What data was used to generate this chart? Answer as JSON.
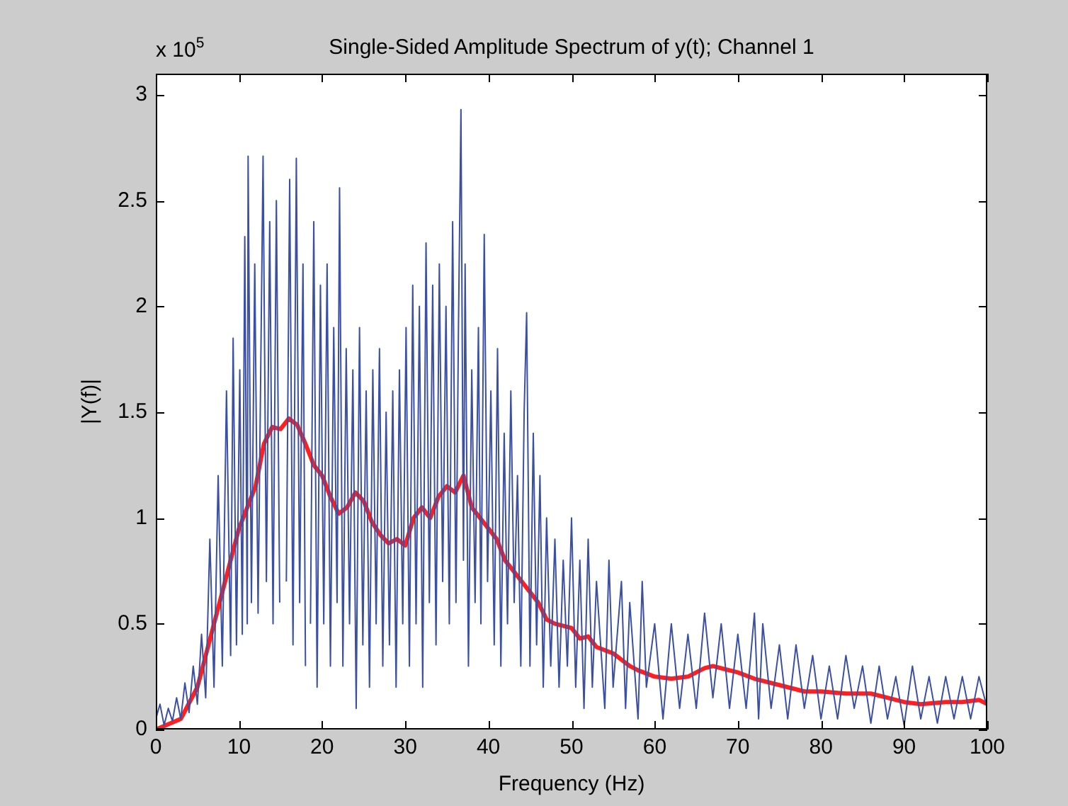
{
  "chart_data": {
    "type": "line",
    "title": "Single-Sided Amplitude Spectrum of y(t); Channel 1",
    "xlabel": "Frequency (Hz)",
    "ylabel": "|Y(f)|",
    "annotations": [
      "x 10$^{5}$"
    ],
    "xlim": [
      0,
      100
    ],
    "ylim": [
      0,
      3.1
    ],
    "xticks": [
      0,
      10,
      20,
      30,
      40,
      50,
      60,
      70,
      80,
      90,
      100
    ],
    "yticks": [
      0,
      0.5,
      1,
      1.5,
      2,
      2.5,
      3
    ],
    "series": [
      {
        "color": "#3b4fa3",
        "x": [
          0,
          0.5,
          1,
          1.5,
          2,
          2.5,
          3,
          3.5,
          4,
          4.5,
          5,
          5.5,
          6,
          6.5,
          7,
          7.5,
          8,
          8.5,
          9,
          9.3,
          9.7,
          10.1,
          10.4,
          10.7,
          11.0,
          11.1,
          11.5,
          11.9,
          12.3,
          12.9,
          13.3,
          13.7,
          14.1,
          14.5,
          14.9,
          15.3,
          15.7,
          16.1,
          16.5,
          16.9,
          17.3,
          17.7,
          18.0,
          18.2,
          18.6,
          19.0,
          19.4,
          19.8,
          20.2,
          20.6,
          21.0,
          21.4,
          21.8,
          22.1,
          22.5,
          22.9,
          23.3,
          23.7,
          24.1,
          24.5,
          24.9,
          25.3,
          25.7,
          26.1,
          26.5,
          26.9,
          27.3,
          27.7,
          28.1,
          28.5,
          28.9,
          29.3,
          29.7,
          30.1,
          30.5,
          30.9,
          31.3,
          31.7,
          32.1,
          32.5,
          32.9,
          33.3,
          33.7,
          34.1,
          34.5,
          34.9,
          35.3,
          35.7,
          36.1,
          36.4,
          36.7,
          37.0,
          37.2,
          37.6,
          38.0,
          38.4,
          38.8,
          39.1,
          39.5,
          39.9,
          40.3,
          40.7,
          41.1,
          41.5,
          41.9,
          42.3,
          42.7,
          43.1,
          43.5,
          43.9,
          44.3,
          44.6,
          45.0,
          45.4,
          45.8,
          46.2,
          46.6,
          47,
          47.5,
          48,
          48.5,
          49,
          49.5,
          50,
          50.5,
          51,
          51.5,
          52,
          52.5,
          53,
          54,
          54.5,
          55,
          56,
          56.5,
          57,
          58,
          58.5,
          59,
          60,
          61,
          62,
          63,
          64,
          65,
          66,
          67,
          68,
          69,
          70,
          71,
          72,
          72.5,
          73,
          74,
          75,
          76,
          77,
          78,
          79,
          80,
          81,
          82,
          83,
          84,
          85,
          86,
          87,
          88,
          89,
          90,
          91,
          92,
          93,
          94,
          95,
          96,
          97,
          98,
          99,
          100
        ],
        "values": [
          0.05,
          0.12,
          0.02,
          0.1,
          0.04,
          0.15,
          0.05,
          0.22,
          0.08,
          0.3,
          0.12,
          0.45,
          0.15,
          0.9,
          0.2,
          1.2,
          0.3,
          1.6,
          0.35,
          1.85,
          0.4,
          1.7,
          0.45,
          2.33,
          0.5,
          2.71,
          0.6,
          2.2,
          0.55,
          2.71,
          0.7,
          2.4,
          0.5,
          2.5,
          0.6,
          null,
          0.7,
          2.6,
          0.4,
          2.7,
          0.6,
          2.2,
          0.3,
          null,
          0.5,
          2.4,
          0.2,
          2.1,
          0.5,
          2.2,
          0.3,
          1.9,
          0.6,
          2.56,
          0.3,
          1.8,
          0.5,
          1.7,
          0.1,
          1.9,
          0.4,
          1.6,
          0.2,
          1.7,
          0.5,
          1.8,
          0.3,
          1.5,
          0.4,
          1.6,
          0.2,
          1.7,
          0.5,
          1.9,
          0.3,
          2.1,
          0.5,
          2.0,
          0.2,
          2.3,
          0.6,
          2.1,
          0.4,
          2.2,
          0.7,
          2.0,
          0.5,
          2.4,
          0.6,
          1.9,
          2.93,
          0.8,
          2.2,
          0.3,
          1.7,
          0.6,
          1.9,
          0.5,
          2.34,
          0.7,
          1.6,
          0.4,
          1.8,
          0.3,
          1.4,
          0.5,
          1.6,
          0.6,
          1.2,
          0.3,
          1.5,
          1.97,
          0.3,
          1.4,
          0.4,
          1.2,
          0.2,
          1.0,
          0.3,
          0.9,
          0.2,
          0.8,
          0.3,
          1.0,
          0.2,
          0.8,
          0.1,
          0.9,
          0.2,
          0.7,
          0.1,
          0.8,
          0.2,
          0.7,
          0.1,
          0.6,
          0.05,
          0.7,
          0.2,
          0.5,
          0.05,
          0.5,
          0.1,
          0.45,
          0.1,
          0.55,
          0.15,
          0.5,
          0.1,
          0.45,
          0.1,
          0.55,
          0.05,
          0.5,
          0.1,
          0.4,
          0.05,
          0.4,
          0.1,
          0.35,
          0.05,
          0.3,
          0.05,
          0.35,
          0.1,
          0.3,
          0.03,
          0.3,
          0.05,
          0.25,
          0.02,
          0.3,
          0.05,
          0.25,
          0.03,
          0.25,
          0.05,
          0.25,
          0.05,
          0.25,
          0.1
        ]
      },
      {
        "color": "#ff1f1f",
        "x": [
          0,
          3,
          5,
          7,
          9,
          10,
          11,
          12,
          13,
          14,
          15,
          16,
          17,
          18,
          19,
          20,
          21,
          22,
          23,
          24,
          25,
          26,
          27,
          28,
          29,
          30,
          31,
          32,
          33,
          34,
          35,
          36,
          37,
          38,
          39,
          40,
          41,
          42,
          43,
          44,
          45,
          46,
          47,
          48,
          50,
          51,
          52,
          53,
          55,
          57,
          58,
          60,
          62,
          64,
          66,
          67,
          70,
          72,
          75,
          78,
          80,
          83,
          86,
          88,
          90,
          92,
          95,
          97,
          99,
          100
        ],
        "values": [
          0,
          0.05,
          0.2,
          0.5,
          0.8,
          0.95,
          1.05,
          1.15,
          1.35,
          1.43,
          1.42,
          1.47,
          1.44,
          1.35,
          1.25,
          1.2,
          1.1,
          1.02,
          1.05,
          1.12,
          1.08,
          0.98,
          0.92,
          0.88,
          0.9,
          0.87,
          1.0,
          1.05,
          1.0,
          1.1,
          1.15,
          1.12,
          1.2,
          1.05,
          1.0,
          0.95,
          0.9,
          0.8,
          0.75,
          0.7,
          0.65,
          0.6,
          0.52,
          0.5,
          0.48,
          0.43,
          0.44,
          0.39,
          0.36,
          0.3,
          0.28,
          0.25,
          0.24,
          0.25,
          0.29,
          0.3,
          0.27,
          0.24,
          0.21,
          0.18,
          0.18,
          0.17,
          0.17,
          0.15,
          0.13,
          0.12,
          0.13,
          0.13,
          0.14,
          0.12
        ]
      }
    ]
  }
}
